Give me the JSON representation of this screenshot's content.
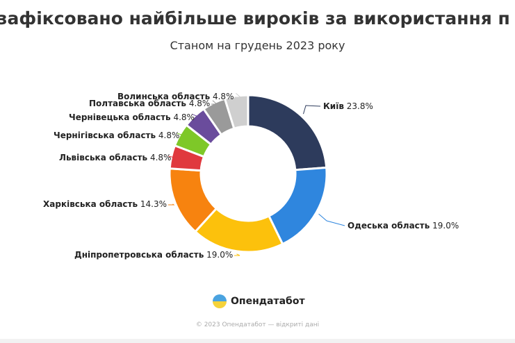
{
  "chart_data": {
    "type": "pie",
    "variant": "donut",
    "title": "зафіксовано найбільше вироків за використання п",
    "subtitle": "Станом на грудень 2023 року",
    "slices": [
      {
        "name": "Київ",
        "value": 23.8,
        "label": "23.8%",
        "color": "#2d3b5c"
      },
      {
        "name": "Одеська область",
        "value": 19.0,
        "label": "19.0%",
        "color": "#2f86de"
      },
      {
        "name": "Дніпропетровська область",
        "value": 19.0,
        "label": "19.0%",
        "color": "#fcc10c"
      },
      {
        "name": "Харківська область",
        "value": 14.3,
        "label": "14.3%",
        "color": "#f7830f"
      },
      {
        "name": "Львівська область",
        "value": 4.8,
        "label": "4.8%",
        "color": "#e0393e"
      },
      {
        "name": "Чернігівська область",
        "value": 4.8,
        "label": "4.8%",
        "color": "#7ec828"
      },
      {
        "name": "Чернівецька область",
        "value": 4.8,
        "label": "4.8%",
        "color": "#6a4c9c"
      },
      {
        "name": "Полтавська область",
        "value": 4.8,
        "label": "4.8%",
        "color": "#9a9a9a"
      },
      {
        "name": "Волинська область",
        "value": 4.8,
        "label": "4.8%",
        "color": "#cfcfcf"
      }
    ]
  },
  "brand": "Опендатабот",
  "footer": "© 2023 Опендатабот — відкриті дані"
}
